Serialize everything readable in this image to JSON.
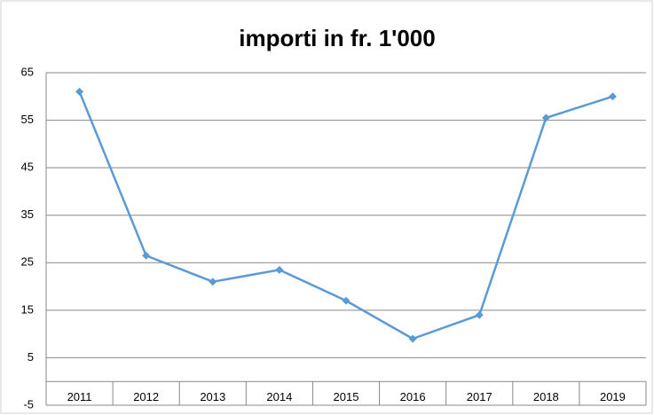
{
  "chart_data": {
    "type": "line",
    "title": "importi in fr. 1'000",
    "categories": [
      "2011",
      "2012",
      "2013",
      "2014",
      "2015",
      "2016",
      "2017",
      "2018",
      "2019"
    ],
    "series": [
      {
        "name": "importi",
        "color": "#5b9bd5",
        "values": [
          61,
          26.5,
          21,
          23.5,
          17,
          9,
          14,
          55.5,
          60
        ]
      }
    ],
    "ylim": [
      -5,
      65
    ],
    "yticks": [
      -5,
      5,
      15,
      25,
      35,
      45,
      55,
      65
    ],
    "grid": true
  }
}
